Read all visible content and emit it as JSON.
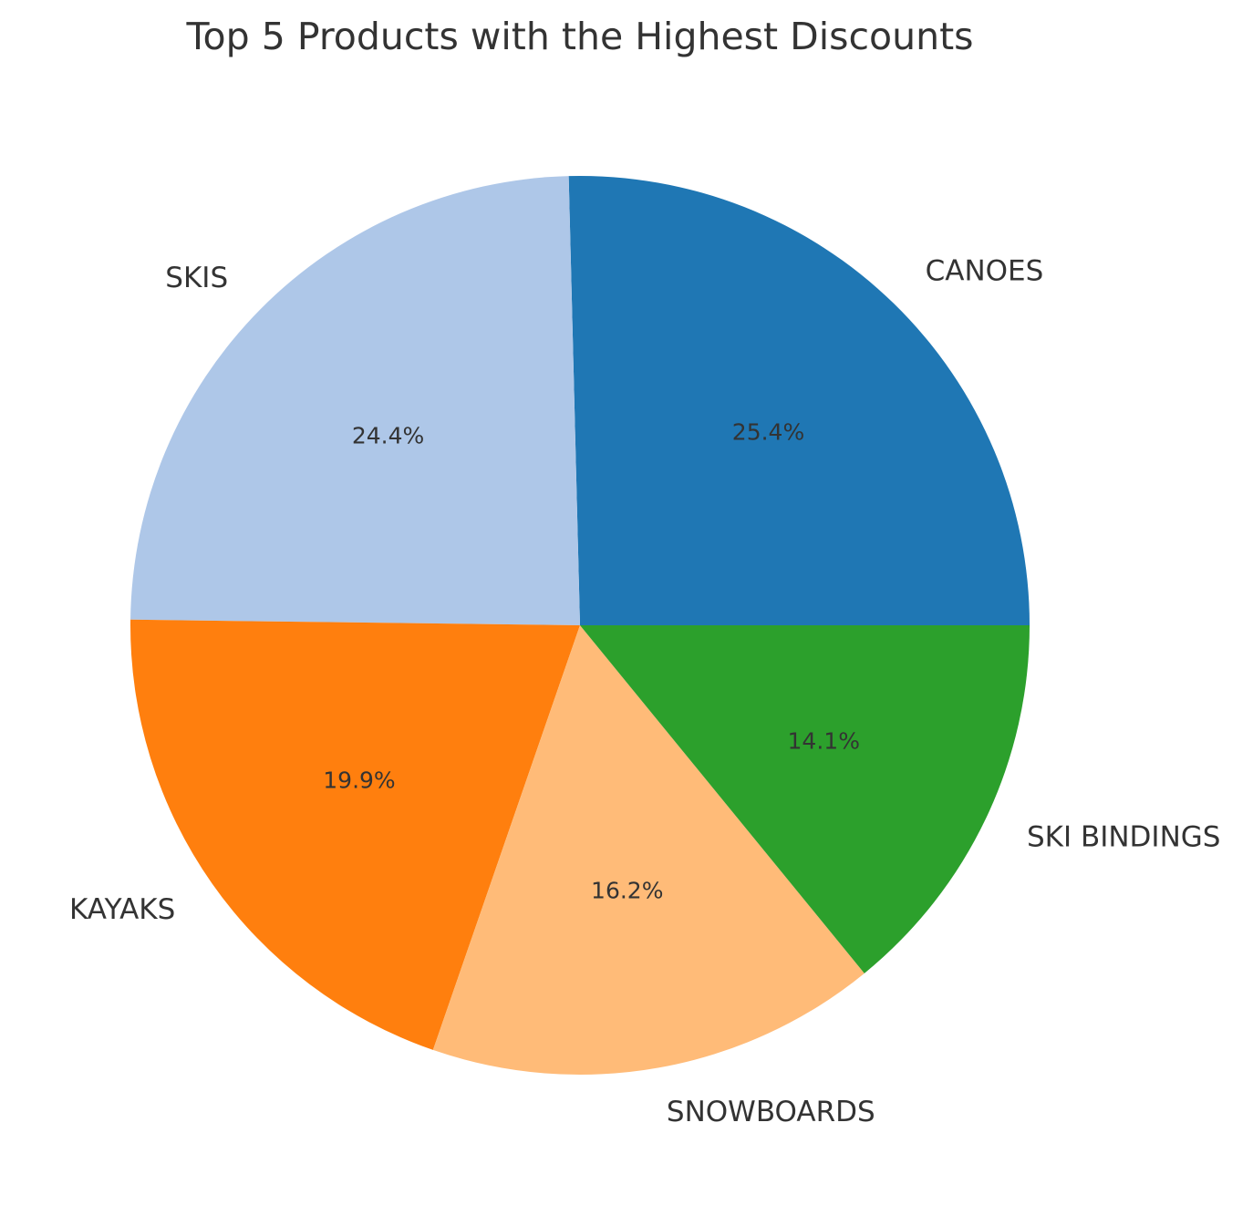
{
  "chart_data": {
    "type": "pie",
    "title": "Top 5 Products with the Highest Discounts",
    "categories": [
      "CANOES",
      "SKIS",
      "KAYAKS",
      "SNOWBOARDS",
      "SKI BINDINGS"
    ],
    "values": [
      25.4,
      24.4,
      19.9,
      16.2,
      14.1
    ],
    "percent_labels": [
      "25.4%",
      "24.4%",
      "19.9%",
      "16.2%",
      "14.1%"
    ],
    "colors": [
      "#1f77b4",
      "#aec7e8",
      "#ff7f0e",
      "#ffbb78",
      "#2ca02c"
    ],
    "start_angle_deg": 0,
    "direction": "counterclockwise"
  }
}
